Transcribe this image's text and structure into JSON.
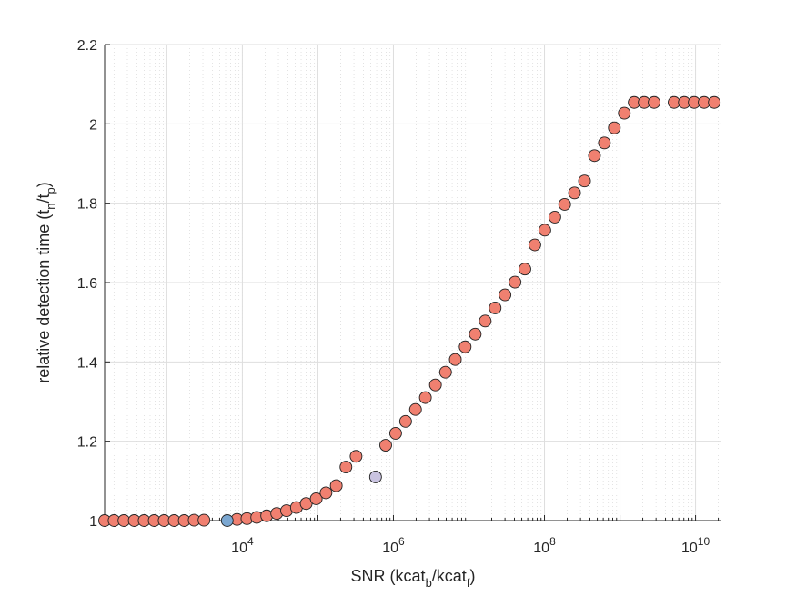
{
  "chart_data": {
    "type": "scatter",
    "title": "",
    "xscale": "log",
    "xlim": [
      150,
      22000000000
    ],
    "ylim": [
      1.0,
      2.2
    ],
    "grid": true,
    "minor_grid_x": true,
    "xlabel": {
      "main": "SNR (kcat",
      "sub1": "b",
      "mid": "/kcat",
      "sub2": "f",
      "end": ")"
    },
    "ylabel": {
      "main": "relative detection time (t",
      "sub1": "n",
      "mid": "/t",
      "sub2": "p",
      "end": ")"
    },
    "x_ticks": [
      {
        "value": 10000,
        "base": "10",
        "exp": "4"
      },
      {
        "value": 1000000,
        "base": "10",
        "exp": "6"
      },
      {
        "value": 100000000,
        "base": "10",
        "exp": "8"
      },
      {
        "value": 10000000000,
        "base": "10",
        "exp": "10"
      }
    ],
    "y_ticks": [
      {
        "value": 1.0,
        "label": "1"
      },
      {
        "value": 1.2,
        "label": "1.2"
      },
      {
        "value": 1.4,
        "label": "1.4"
      },
      {
        "value": 1.6,
        "label": "1.6"
      },
      {
        "value": 1.8,
        "label": "1.8"
      },
      {
        "value": 2.0,
        "label": "2"
      },
      {
        "value": 2.2,
        "label": "2.2"
      }
    ],
    "series": [
      {
        "name": "main",
        "color": "#f08070",
        "x": [
          150,
          200,
          270,
          370,
          500,
          680,
          920,
          1250,
          1700,
          2300,
          3100,
          8500,
          11500,
          15500,
          21000,
          28500,
          38500,
          52000,
          70000,
          95000,
          128000,
          175000,
          235000,
          320000,
          790000,
          1070000,
          1450000,
          1960000,
          2650000,
          3600000,
          4900000,
          6600000,
          8900000,
          12100000,
          16400000,
          22200000,
          30000000,
          40700000,
          55000000,
          74500000,
          101000000,
          137000000,
          185000000,
          250000000,
          339000000,
          459000000,
          621000000,
          841000000,
          1140000000,
          1540000000,
          2090000000,
          2830000000,
          5200000000,
          7100000000,
          9600000000,
          13000000000,
          17700000000
        ],
        "y": [
          1.0,
          1.0,
          1.0,
          1.0,
          1.0,
          1.0,
          1.0,
          1.0,
          1.0,
          1.001,
          1.001,
          1.003,
          1.005,
          1.008,
          1.012,
          1.018,
          1.025,
          1.033,
          1.043,
          1.055,
          1.07,
          1.088,
          1.135,
          1.162,
          1.19,
          1.22,
          1.25,
          1.28,
          1.31,
          1.342,
          1.374,
          1.406,
          1.438,
          1.47,
          1.503,
          1.536,
          1.569,
          1.601,
          1.634,
          1.695,
          1.732,
          1.765,
          1.797,
          1.826,
          1.856,
          1.92,
          1.952,
          1.99,
          2.027,
          2.054,
          2.054,
          2.054,
          2.054,
          2.054,
          2.054,
          2.054,
          2.054
        ]
      },
      {
        "name": "highlight-blue",
        "color": "#7ba7d1",
        "x": [
          6300
        ],
        "y": [
          1.0
        ]
      },
      {
        "name": "highlight-lavender",
        "color": "#c9c3e0",
        "x": [
          580000
        ],
        "y": [
          1.11
        ]
      }
    ]
  }
}
